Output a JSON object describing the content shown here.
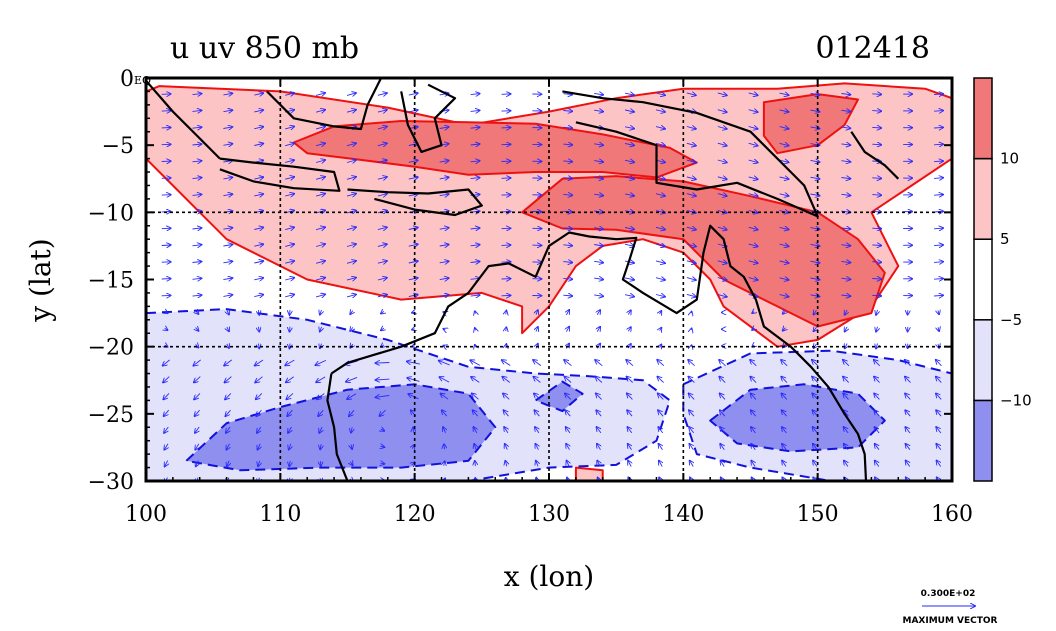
{
  "chart_data": {
    "type": "heatmap",
    "title_left": "u uv 850 mb",
    "title_right": "012418",
    "xlabel": "x (lon)",
    "ylabel": "y (lat)",
    "xlim": [
      100,
      160
    ],
    "ylim": [
      -30,
      0
    ],
    "x_ticks": [
      100,
      110,
      120,
      130,
      140,
      150,
      160
    ],
    "y_ticks": [
      0,
      -5,
      -10,
      -15,
      -20,
      -25,
      -30
    ],
    "y_tick_labels": [
      "0",
      "−5",
      "−10",
      "−15",
      "−20",
      "−25",
      "−30"
    ],
    "x_tick_labels": [
      "100",
      "110",
      "120",
      "130",
      "140",
      "150",
      "160"
    ],
    "corner_label": "EQ",
    "grid": true,
    "grid_lon": [
      110,
      120,
      130,
      140,
      150
    ],
    "grid_lat": [
      -10,
      -20
    ],
    "colorbar": {
      "levels": [
        -10,
        -5,
        5,
        10
      ],
      "labels": [
        "−10",
        "−5",
        "5",
        "10"
      ],
      "colors": [
        "#8f8ff0",
        "#e2e2fb",
        "#ffffff",
        "#fcc4c4",
        "#f07878"
      ]
    },
    "vector_reference": {
      "value": "0.300E+02",
      "label": "MAXIMUM VECTOR"
    },
    "regions": [
      {
        "name": "positive-u-5-northern-band",
        "level": 5,
        "points": [
          [
            101,
            -0.6
          ],
          [
            110,
            -1
          ],
          [
            118,
            -2.2
          ],
          [
            124,
            -3.5
          ],
          [
            130,
            -2.5
          ],
          [
            135,
            -1.5
          ],
          [
            140,
            -0.8
          ],
          [
            147,
            -0.8
          ],
          [
            152,
            -0.4
          ],
          [
            158,
            -0.8
          ],
          [
            160,
            -1.5
          ],
          [
            160,
            -6
          ],
          [
            157,
            -8
          ],
          [
            154,
            -10
          ],
          [
            155,
            -12
          ],
          [
            156,
            -14
          ],
          [
            154,
            -17
          ],
          [
            150,
            -19.5
          ],
          [
            147,
            -20
          ],
          [
            143,
            -17
          ],
          [
            142,
            -15
          ],
          [
            140,
            -13
          ],
          [
            137,
            -12
          ],
          [
            134,
            -12.5
          ],
          [
            132,
            -14
          ],
          [
            130,
            -17
          ],
          [
            128,
            -19
          ],
          [
            128,
            -17
          ],
          [
            125,
            -16
          ],
          [
            119,
            -16.5
          ],
          [
            112,
            -15
          ],
          [
            106,
            -12
          ],
          [
            104,
            -10
          ],
          [
            102,
            -8
          ],
          [
            100,
            -6
          ],
          [
            100,
            -1
          ]
        ]
      },
      {
        "name": "positive-u-10-java-sea",
        "level": 10,
        "points": [
          [
            111,
            -4.8
          ],
          [
            114,
            -3.6
          ],
          [
            119,
            -3.2
          ],
          [
            124,
            -3.3
          ],
          [
            129,
            -3.4
          ],
          [
            134,
            -4.2
          ],
          [
            139,
            -5.2
          ],
          [
            141,
            -6.3
          ],
          [
            138,
            -7.4
          ],
          [
            134,
            -7
          ],
          [
            129,
            -7
          ],
          [
            124,
            -7.2
          ],
          [
            120,
            -6.6
          ],
          [
            116,
            -6.1
          ],
          [
            112,
            -5.6
          ]
        ]
      },
      {
        "name": "positive-u-10-coral-sea",
        "level": 10,
        "points": [
          [
            128,
            -10
          ],
          [
            131,
            -7.5
          ],
          [
            135,
            -7.3
          ],
          [
            140,
            -7.7
          ],
          [
            145,
            -8.8
          ],
          [
            150,
            -10
          ],
          [
            153,
            -12
          ],
          [
            155,
            -14.5
          ],
          [
            154,
            -17.5
          ],
          [
            150,
            -18.5
          ],
          [
            147,
            -17
          ],
          [
            143,
            -15
          ],
          [
            140,
            -12
          ],
          [
            135,
            -11.3
          ],
          [
            131,
            -11.2
          ]
        ]
      },
      {
        "name": "positive-u-10-north-east",
        "level": 10,
        "points": [
          [
            146,
            -1.8
          ],
          [
            150,
            -1.2
          ],
          [
            153,
            -1.6
          ],
          [
            152,
            -3.5
          ],
          [
            150,
            -5
          ],
          [
            147,
            -5.6
          ],
          [
            146,
            -4.3
          ]
        ]
      },
      {
        "name": "positive-u-5-small-south",
        "level": 5,
        "points": [
          [
            132,
            -29
          ],
          [
            134,
            -29.2
          ],
          [
            134,
            -30
          ],
          [
            132,
            -30
          ]
        ]
      },
      {
        "name": "negative-u-5-southwest",
        "level": -5,
        "points": [
          [
            100,
            -17.5
          ],
          [
            106,
            -17.2
          ],
          [
            112,
            -18
          ],
          [
            118,
            -19.5
          ],
          [
            124,
            -21.5
          ],
          [
            129,
            -22
          ],
          [
            133,
            -22.2
          ],
          [
            137,
            -22.5
          ],
          [
            139,
            -24
          ],
          [
            138,
            -27
          ],
          [
            135,
            -28.8
          ],
          [
            130,
            -29
          ],
          [
            124,
            -30
          ],
          [
            100,
            -30
          ]
        ]
      },
      {
        "name": "negative-u-5-southeast",
        "level": -5,
        "points": [
          [
            140,
            -22.8
          ],
          [
            145,
            -20.5
          ],
          [
            151,
            -20.3
          ],
          [
            156,
            -21
          ],
          [
            160,
            -22
          ],
          [
            160,
            -30
          ],
          [
            151,
            -30
          ],
          [
            145,
            -29
          ],
          [
            141,
            -28
          ],
          [
            140,
            -25
          ]
        ]
      },
      {
        "name": "negative-u-10-west-core",
        "level": -10,
        "points": [
          [
            103,
            -28.5
          ],
          [
            106,
            -25.7
          ],
          [
            110,
            -24.5
          ],
          [
            115,
            -23.2
          ],
          [
            120,
            -22.8
          ],
          [
            124,
            -23.5
          ],
          [
            126,
            -26
          ],
          [
            124,
            -28.5
          ],
          [
            119,
            -29
          ],
          [
            113,
            -29
          ],
          [
            107,
            -29.2
          ]
        ]
      },
      {
        "name": "negative-u-10-east-core",
        "level": -10,
        "points": [
          [
            142,
            -25.5
          ],
          [
            145,
            -23.2
          ],
          [
            149,
            -22.8
          ],
          [
            153,
            -23.5
          ],
          [
            155,
            -25.5
          ],
          [
            153,
            -27.5
          ],
          [
            148,
            -27.8
          ],
          [
            144,
            -27.2
          ]
        ]
      },
      {
        "name": "negative-u-10-small-center",
        "level": -10,
        "points": [
          [
            129,
            -24
          ],
          [
            131,
            -22.6
          ],
          [
            132.5,
            -23.5
          ],
          [
            131,
            -24.8
          ]
        ]
      }
    ],
    "coastlines": [
      {
        "name": "sumatra-coast",
        "points": [
          [
            100,
            -0.2
          ],
          [
            102,
            -2.5
          ],
          [
            104,
            -4.5
          ],
          [
            105.5,
            -6
          ]
        ]
      },
      {
        "name": "java-coast",
        "points": [
          [
            105.5,
            -6
          ],
          [
            108,
            -6.3
          ],
          [
            111,
            -6.6
          ],
          [
            114,
            -7
          ],
          [
            114.4,
            -8.4
          ],
          [
            111,
            -8.2
          ],
          [
            108,
            -7.7
          ],
          [
            105.5,
            -6.8
          ]
        ]
      },
      {
        "name": "lesser-sunda",
        "points": [
          [
            115,
            -8.3
          ],
          [
            118,
            -8.5
          ],
          [
            121,
            -8.6
          ],
          [
            124,
            -8.3
          ],
          [
            125,
            -9.5
          ],
          [
            123,
            -10.2
          ],
          [
            120,
            -9.8
          ],
          [
            117,
            -9
          ]
        ]
      },
      {
        "name": "borneo-south",
        "points": [
          [
            109,
            -1
          ],
          [
            111,
            -3
          ],
          [
            114,
            -3.6
          ],
          [
            116,
            -3.8
          ],
          [
            116.5,
            -2
          ],
          [
            117.5,
            0
          ]
        ]
      },
      {
        "name": "sulawesi",
        "points": [
          [
            119,
            -1
          ],
          [
            119.5,
            -3.5
          ],
          [
            120.5,
            -5.5
          ],
          [
            122,
            -5
          ],
          [
            121.5,
            -3
          ],
          [
            123,
            -1.5
          ],
          [
            121,
            -0.5
          ]
        ]
      },
      {
        "name": "new-guinea",
        "points": [
          [
            131,
            -1
          ],
          [
            134,
            -1.5
          ],
          [
            137,
            -1.8
          ],
          [
            141,
            -2.6
          ],
          [
            145,
            -4
          ],
          [
            147,
            -6
          ],
          [
            149,
            -8
          ],
          [
            150,
            -10.3
          ],
          [
            147,
            -9
          ],
          [
            144,
            -7.8
          ],
          [
            141,
            -8.3
          ],
          [
            138,
            -7.8
          ],
          [
            138,
            -5
          ],
          [
            135,
            -4
          ],
          [
            132,
            -3.3
          ]
        ]
      },
      {
        "name": "australia",
        "points": [
          [
            113.8,
            -22
          ],
          [
            115,
            -21.2
          ],
          [
            117,
            -20.6
          ],
          [
            119,
            -20
          ],
          [
            121.5,
            -19
          ],
          [
            122.5,
            -17
          ],
          [
            124,
            -16
          ],
          [
            125.5,
            -14
          ],
          [
            127,
            -13.8
          ],
          [
            129,
            -14.8
          ],
          [
            130,
            -12.5
          ],
          [
            131.5,
            -11.5
          ],
          [
            133,
            -11.8
          ],
          [
            135,
            -12
          ],
          [
            136.5,
            -11.9
          ],
          [
            136,
            -13.5
          ],
          [
            135.5,
            -15
          ],
          [
            137,
            -16
          ],
          [
            139.5,
            -17.5
          ],
          [
            141,
            -16.5
          ],
          [
            141.5,
            -13
          ],
          [
            142,
            -11
          ],
          [
            143,
            -12
          ],
          [
            143.5,
            -14
          ],
          [
            144.5,
            -14.8
          ],
          [
            145.4,
            -16.5
          ],
          [
            146,
            -18.5
          ],
          [
            148,
            -20
          ],
          [
            149.5,
            -21.5
          ],
          [
            150.8,
            -23
          ],
          [
            152,
            -25
          ],
          [
            153,
            -26.5
          ],
          [
            153.5,
            -28
          ],
          [
            153.6,
            -30
          ]
        ]
      },
      {
        "name": "australia-west",
        "points": [
          [
            113.8,
            -22
          ],
          [
            113.5,
            -24
          ],
          [
            114,
            -26
          ],
          [
            114.2,
            -28
          ],
          [
            115,
            -30
          ]
        ]
      },
      {
        "name": "tasmania-stub",
        "points": [
          [
            152.5,
            -4
          ],
          [
            153.5,
            -5.5
          ],
          [
            155,
            -6.5
          ],
          [
            156,
            -7.5
          ]
        ]
      }
    ]
  }
}
